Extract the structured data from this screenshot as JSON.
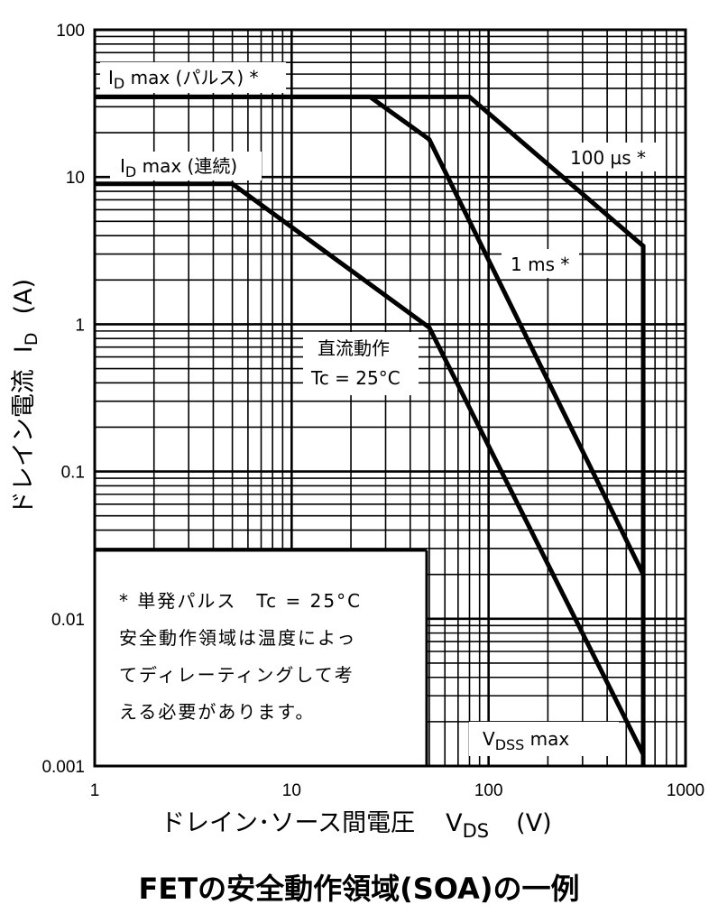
{
  "chart_data": {
    "type": "line",
    "x_scale": "log",
    "y_scale": "log",
    "xlim": [
      1,
      1000
    ],
    "ylim": [
      0.001,
      100
    ],
    "x_ticks": [
      "1",
      "10",
      "100",
      "1000"
    ],
    "y_ticks": [
      "0.001",
      "0.01",
      "0.1",
      "1",
      "10",
      "100"
    ],
    "xlabel": "ドレイン･ソース間電圧",
    "xlabel_symbol": "V",
    "xlabel_sub": "DS",
    "xlabel_unit": "(V)",
    "ylabel": "ドレイン電流",
    "ylabel_symbol": "I",
    "ylabel_sub": "D",
    "ylabel_unit": "(A)",
    "grid": true,
    "series": [
      {
        "name": "100 µs *",
        "x": [
          1,
          80,
          610,
          610
        ],
        "y": [
          35,
          35,
          3.4,
          0.001
        ]
      },
      {
        "name": "1 ms *",
        "x": [
          1,
          25,
          50,
          610
        ],
        "y": [
          35,
          35,
          18,
          0.02
        ]
      },
      {
        "name": "直流動作 Tc = 25°C",
        "x": [
          1,
          5,
          50,
          610
        ],
        "y": [
          9,
          9,
          0.95,
          0.0012
        ]
      }
    ],
    "annotations": {
      "id_max_pulse": {
        "symbol": "I",
        "sub": "D",
        "text": " max (パルス) *"
      },
      "id_max_cont": {
        "symbol": "I",
        "sub": "D",
        "text": " max (連続)"
      },
      "label_100us": "100 µs *",
      "label_1ms": "1 ms *",
      "label_dc_1": "直流動作",
      "label_dc_2": "Tc = 25°C",
      "vdss_max": {
        "symbol": "V",
        "sub": "DSS",
        "text": " max"
      }
    },
    "note": [
      "* 単発パルス　Tc = 25°C",
      "安全動作領域は温度によっ",
      "てディレーティングして考",
      "える必要があります。"
    ],
    "caption": "FETの安全動作領域(SOA)の一例"
  }
}
